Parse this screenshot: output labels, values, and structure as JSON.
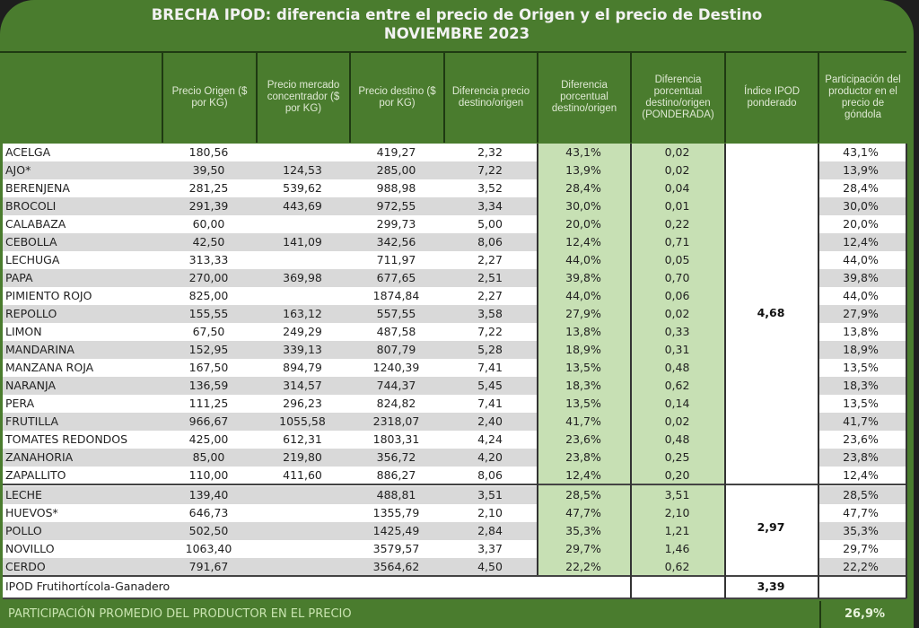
{
  "title": {
    "line1": "BRECHA IPOD: diferencia entre el precio de Origen y el precio de Destino",
    "line2": "NOVIEMBRE 2023"
  },
  "headers": [
    "",
    "Precio Origen ($ por KG)",
    "Precio mercado concentrador ($ por KG)",
    "Precio destino ($ por KG)",
    "Diferencia precio destino/origen",
    "Diferencia porcentual destino/origen",
    "Diferencia porcentual destino/origen (PONDERADA)",
    "Índice IPOD ponderado",
    "Participación del productor en el precio de góndola"
  ],
  "rows": [
    {
      "name": "ACELGA",
      "origen": "180,56",
      "mercado": "",
      "destino": "419,27",
      "dif": "2,32",
      "pct": "43,1%",
      "pond": "0,02",
      "part": "43,1%"
    },
    {
      "name": "AJO*",
      "origen": "39,50",
      "mercado": "124,53",
      "destino": "285,00",
      "dif": "7,22",
      "pct": "13,9%",
      "pond": "0,02",
      "part": "13,9%"
    },
    {
      "name": "BERENJENA",
      "origen": "281,25",
      "mercado": "539,62",
      "destino": "988,98",
      "dif": "3,52",
      "pct": "28,4%",
      "pond": "0,04",
      "part": "28,4%"
    },
    {
      "name": "BROCOLI",
      "origen": "291,39",
      "mercado": "443,69",
      "destino": "972,55",
      "dif": "3,34",
      "pct": "30,0%",
      "pond": "0,01",
      "part": "30,0%"
    },
    {
      "name": "CALABAZA",
      "origen": "60,00",
      "mercado": "",
      "destino": "299,73",
      "dif": "5,00",
      "pct": "20,0%",
      "pond": "0,22",
      "part": "20,0%"
    },
    {
      "name": "CEBOLLA",
      "origen": "42,50",
      "mercado": "141,09",
      "destino": "342,56",
      "dif": "8,06",
      "pct": "12,4%",
      "pond": "0,71",
      "part": "12,4%"
    },
    {
      "name": "LECHUGA",
      "origen": "313,33",
      "mercado": "",
      "destino": "711,97",
      "dif": "2,27",
      "pct": "44,0%",
      "pond": "0,05",
      "part": "44,0%"
    },
    {
      "name": "PAPA",
      "origen": "270,00",
      "mercado": "369,98",
      "destino": "677,65",
      "dif": "2,51",
      "pct": "39,8%",
      "pond": "0,70",
      "part": "39,8%"
    },
    {
      "name": "PIMIENTO ROJO",
      "origen": "825,00",
      "mercado": "",
      "destino": "1874,84",
      "dif": "2,27",
      "pct": "44,0%",
      "pond": "0,06",
      "part": "44,0%"
    },
    {
      "name": "REPOLLO",
      "origen": "155,55",
      "mercado": "163,12",
      "destino": "557,55",
      "dif": "3,58",
      "pct": "27,9%",
      "pond": "0,02",
      "part": "27,9%"
    },
    {
      "name": "LIMON",
      "origen": "67,50",
      "mercado": "249,29",
      "destino": "487,58",
      "dif": "7,22",
      "pct": "13,8%",
      "pond": "0,33",
      "part": "13,8%"
    },
    {
      "name": "MANDARINA",
      "origen": "152,95",
      "mercado": "339,13",
      "destino": "807,79",
      "dif": "5,28",
      "pct": "18,9%",
      "pond": "0,31",
      "part": "18,9%"
    },
    {
      "name": "MANZANA ROJA",
      "origen": "167,50",
      "mercado": "894,79",
      "destino": "1240,39",
      "dif": "7,41",
      "pct": "13,5%",
      "pond": "0,48",
      "part": "13,5%"
    },
    {
      "name": "NARANJA",
      "origen": "136,59",
      "mercado": "314,57",
      "destino": "744,37",
      "dif": "5,45",
      "pct": "18,3%",
      "pond": "0,62",
      "part": "18,3%"
    },
    {
      "name": "PERA",
      "origen": "111,25",
      "mercado": "296,23",
      "destino": "824,82",
      "dif": "7,41",
      "pct": "13,5%",
      "pond": "0,14",
      "part": "13,5%"
    },
    {
      "name": "FRUTILLA",
      "origen": "966,67",
      "mercado": "1055,58",
      "destino": "2318,07",
      "dif": "2,40",
      "pct": "41,7%",
      "pond": "0,02",
      "part": "41,7%"
    },
    {
      "name": "TOMATES REDONDOS",
      "origen": "425,00",
      "mercado": "612,31",
      "destino": "1803,31",
      "dif": "4,24",
      "pct": "23,6%",
      "pond": "0,48",
      "part": "23,6%"
    },
    {
      "name": "ZANAHORIA",
      "origen": "85,00",
      "mercado": "219,80",
      "destino": "356,72",
      "dif": "4,20",
      "pct": "23,8%",
      "pond": "0,25",
      "part": "23,8%"
    },
    {
      "name": "ZAPALLITO",
      "origen": "110,00",
      "mercado": "411,60",
      "destino": "886,27",
      "dif": "8,06",
      "pct": "12,4%",
      "pond": "0,20",
      "part": "12,4%"
    },
    {
      "name": "LECHE",
      "origen": "139,40",
      "mercado": "",
      "destino": "488,81",
      "dif": "3,51",
      "pct": "28,5%",
      "pond": "3,51",
      "part": "28,5%"
    },
    {
      "name": "HUEVOS*",
      "origen": "646,73",
      "mercado": "",
      "destino": "1355,79",
      "dif": "2,10",
      "pct": "47,7%",
      "pond": "2,10",
      "part": "47,7%"
    },
    {
      "name": "POLLO",
      "origen": "502,50",
      "mercado": "",
      "destino": "1425,49",
      "dif": "2,84",
      "pct": "35,3%",
      "pond": "1,21",
      "part": "35,3%"
    },
    {
      "name": "NOVILLO",
      "origen": "1063,40",
      "mercado": "",
      "destino": "3579,57",
      "dif": "3,37",
      "pct": "29,7%",
      "pond": "1,46",
      "part": "29,7%"
    },
    {
      "name": "CERDO",
      "origen": "791,67",
      "mercado": "",
      "destino": "3564,62",
      "dif": "4,50",
      "pct": "22,2%",
      "pond": "0,62",
      "part": "22,2%"
    }
  ],
  "ipod_frutihorticola": "4,68",
  "ipod_ganadero": "2,97",
  "total": {
    "label": "IPOD Frutihortícola-Ganadero",
    "value": "3,39"
  },
  "footer": {
    "label": "PARTICIPACIÓN PROMEDIO DEL PRODUCTOR EN EL PRECIO",
    "value": "26,9%"
  },
  "colors": {
    "header_green": "#4a7c2e",
    "light_green": "#c7e0b4",
    "alt_row": "#d9d9d9"
  }
}
